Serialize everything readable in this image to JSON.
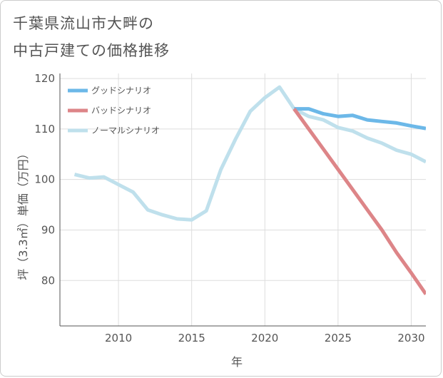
{
  "title": {
    "line1": "千葉県流山市大畔の",
    "line2": "中古戸建ての価格推移"
  },
  "colors": {
    "good": "#6cb8e8",
    "bad": "#dd8588",
    "normal": "#bfe0ec",
    "grid": "#dddddd",
    "axis": "#555555",
    "text": "#555555"
  },
  "chart_data": {
    "type": "line",
    "title": "千葉県流山市大畔の中古戸建ての価格推移",
    "xlabel": "年",
    "ylabel": "坪（3.3㎡）単価（万円）",
    "xlim": [
      2006,
      2031
    ],
    "ylim": [
      71,
      121
    ],
    "xticks": [
      2010,
      2015,
      2020,
      2025,
      2030
    ],
    "yticks": [
      80,
      90,
      100,
      110,
      120
    ],
    "grid": true,
    "legend_position": "top-left",
    "series": [
      {
        "key": "normal",
        "name": "ノーマルシナリオ",
        "x": [
          2007,
          2008,
          2009,
          2010,
          2011,
          2012,
          2013,
          2014,
          2015,
          2016,
          2017,
          2018,
          2019,
          2020,
          2021,
          2022,
          2023,
          2024,
          2025,
          2026,
          2027,
          2028,
          2029,
          2030,
          2031
        ],
        "values": [
          101,
          100.3,
          100.5,
          99,
          97.5,
          94,
          93,
          92.2,
          92,
          93.8,
          102,
          108,
          113.5,
          116.2,
          118.3,
          114,
          112.5,
          111.8,
          110.3,
          109.6,
          108.2,
          107.2,
          105.8,
          105,
          103.5
        ]
      },
      {
        "key": "good",
        "name": "グッドシナリオ",
        "x": [
          2022,
          2023,
          2024,
          2025,
          2026,
          2027,
          2028,
          2029,
          2030,
          2031
        ],
        "values": [
          114,
          114,
          113,
          112.5,
          112.7,
          111.8,
          111.5,
          111.2,
          110.6,
          110.1
        ]
      },
      {
        "key": "bad",
        "name": "バッドシナリオ",
        "x": [
          2022,
          2023,
          2024,
          2025,
          2026,
          2027,
          2028,
          2029,
          2030,
          2031
        ],
        "values": [
          114,
          110,
          106,
          102,
          98,
          94,
          90,
          85.5,
          81.5,
          77.3
        ]
      }
    ],
    "legend_order": [
      "good",
      "bad",
      "normal"
    ]
  }
}
